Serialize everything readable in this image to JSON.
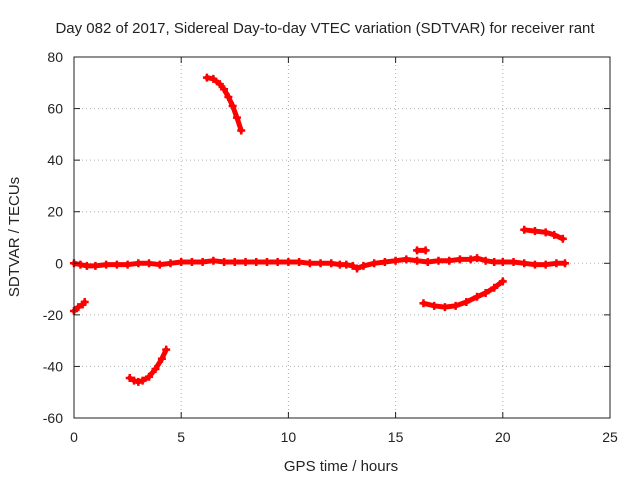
{
  "chart_data": {
    "type": "scatter",
    "title": "Day 082 of 2017, Sidereal Day-to-day VTEC variation (SDTVAR) for receiver rant",
    "xlabel": "GPS time / hours",
    "ylabel": "SDTVAR / TECUs",
    "xlim": [
      0,
      25
    ],
    "ylim": [
      -60,
      80
    ],
    "x_ticks": [
      "0",
      "5",
      "10",
      "15",
      "20",
      "25"
    ],
    "y_ticks": [
      "-60",
      "-40",
      "-20",
      "0",
      "20",
      "40",
      "60",
      "80"
    ],
    "grid": true,
    "color": "#ff0000",
    "series": [
      {
        "x": [
          0.0,
          0.3,
          0.6,
          1.0,
          1.5,
          2.0,
          2.5,
          3.0,
          3.5,
          4.0,
          4.5,
          5.0,
          5.5,
          6.0,
          6.5,
          7.0,
          7.5,
          8.0,
          8.5,
          9.0,
          9.5,
          10.0,
          10.5,
          11.0,
          11.5,
          12.0,
          12.4,
          12.7,
          13.0,
          13.2,
          13.5,
          14.0,
          14.5,
          15.0,
          15.5,
          16.0,
          16.5,
          17.0,
          17.5,
          18.0,
          18.5,
          18.8,
          19.2,
          19.6,
          20.0,
          20.5,
          21.0,
          21.5,
          22.0,
          22.5,
          22.9
        ],
        "y": [
          0.0,
          -0.5,
          -1.0,
          -1.0,
          -0.5,
          -0.5,
          -0.5,
          0.0,
          0.0,
          -0.5,
          0.0,
          0.5,
          0.5,
          0.5,
          1.0,
          0.5,
          0.5,
          0.5,
          0.5,
          0.5,
          0.5,
          0.5,
          0.5,
          0.0,
          0.0,
          0.0,
          -0.5,
          -0.5,
          -1.0,
          -2.0,
          -1.0,
          0.0,
          0.5,
          1.0,
          1.5,
          1.0,
          0.5,
          1.0,
          1.0,
          1.5,
          1.5,
          2.0,
          1.0,
          0.5,
          0.5,
          0.5,
          0.0,
          -0.5,
          -0.5,
          0.0,
          0.0
        ]
      },
      {
        "x": [
          0.0,
          0.2,
          0.4,
          0.5
        ],
        "y": [
          -18.5,
          -17.0,
          -16.0,
          -15.0
        ]
      },
      {
        "x": [
          2.6,
          2.8,
          3.0,
          3.2,
          3.5,
          3.8,
          4.1,
          4.3
        ],
        "y": [
          -44.5,
          -45.5,
          -46.0,
          -45.5,
          -44.0,
          -41.0,
          -37.0,
          -33.5
        ]
      },
      {
        "x": [
          6.2,
          6.5,
          6.8,
          7.0,
          7.2,
          7.4,
          7.6,
          7.8
        ],
        "y": [
          72.0,
          71.5,
          69.5,
          67.5,
          64.5,
          61.0,
          56.5,
          51.5
        ]
      },
      {
        "x": [
          16.0,
          16.4
        ],
        "y": [
          5.0,
          5.0
        ]
      },
      {
        "x": [
          16.3,
          16.8,
          17.3,
          17.8,
          18.3,
          18.8,
          19.2,
          19.6,
          20.0
        ],
        "y": [
          -15.5,
          -16.5,
          -17.0,
          -16.5,
          -15.0,
          -13.0,
          -11.5,
          -9.5,
          -7.0
        ]
      },
      {
        "x": [
          21.0,
          21.5,
          22.0,
          22.4,
          22.8
        ],
        "y": [
          13.0,
          12.5,
          12.0,
          11.0,
          9.5
        ]
      }
    ]
  }
}
